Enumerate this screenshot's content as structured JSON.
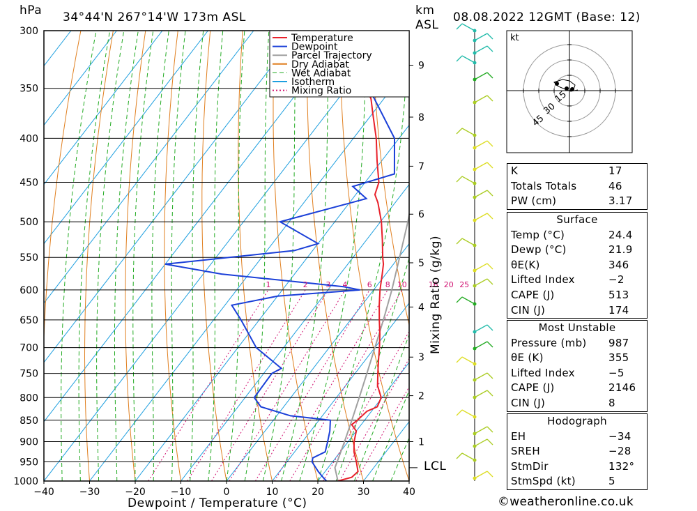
{
  "header": {
    "units_left": "hPa",
    "location": "34°44'N  267°14'W  173m  ASL",
    "units_km": "km",
    "units_asl": "ASL",
    "datetime": "08.08.2022  12GMT  (Base: 12)"
  },
  "chart_data": {
    "type": "skew-t log-p",
    "xlabel": "Dewpoint / Temperature (°C)",
    "ylabel_left": "hPa",
    "ylabel_right": "Mixing Ratio (g/kg)",
    "x_ticks": [
      -40,
      -30,
      -20,
      -10,
      0,
      10,
      20,
      30,
      40
    ],
    "x_tick_labels": [
      "−40",
      "−30",
      "−20",
      "−10",
      "0",
      "10",
      "20",
      "30",
      "40"
    ],
    "pressure_levels": [
      300,
      350,
      400,
      450,
      500,
      550,
      600,
      650,
      700,
      750,
      800,
      850,
      900,
      950,
      1000
    ],
    "km_ticks": [
      {
        "km": 1,
        "p": 900
      },
      {
        "km": 2,
        "p": 796
      },
      {
        "km": 3,
        "p": 718
      },
      {
        "km": 4,
        "p": 628
      },
      {
        "km": 5,
        "p": 558
      },
      {
        "km": 6,
        "p": 490
      },
      {
        "km": 7,
        "p": 431
      },
      {
        "km": 8,
        "p": 378
      },
      {
        "km": 9,
        "p": 329
      }
    ],
    "lcl": {
      "label": "LCL",
      "p": 965
    },
    "mixing_ratio_labels": [
      "1",
      "2",
      "3",
      "4",
      "6",
      "8",
      "10",
      "16",
      "20",
      "25"
    ],
    "legend": [
      {
        "label": "Temperature",
        "color": "#e8202a"
      },
      {
        "label": "Dewpoint",
        "color": "#1a3fd8"
      },
      {
        "label": "Parcel Trajectory",
        "color": "#a0a0a0"
      },
      {
        "label": "Dry Adiabat",
        "color": "#e07f1f"
      },
      {
        "label": "Wet Adiabat",
        "color": "#22aa22"
      },
      {
        "label": "Isotherm",
        "color": "#1e9fdf"
      },
      {
        "label": "Mixing Ratio",
        "color": "#d01070"
      }
    ],
    "series": [
      {
        "name": "Temperature",
        "points": [
          [
            1000,
            24.4
          ],
          [
            990,
            26.8
          ],
          [
            975,
            27.2
          ],
          [
            950,
            25.2
          ],
          [
            925,
            23.0
          ],
          [
            900,
            21.3
          ],
          [
            875,
            20.0
          ],
          [
            860,
            17.9
          ],
          [
            850,
            18.4
          ],
          [
            830,
            19.0
          ],
          [
            820,
            20.5
          ],
          [
            800,
            19.8
          ],
          [
            775,
            17.0
          ],
          [
            750,
            15.0
          ],
          [
            725,
            13.0
          ],
          [
            700,
            11.0
          ],
          [
            675,
            8.8
          ],
          [
            650,
            6.3
          ],
          [
            625,
            3.8
          ],
          [
            600,
            1.4
          ],
          [
            575,
            -0.8
          ],
          [
            560,
            -2.2
          ],
          [
            550,
            -3.5
          ],
          [
            525,
            -6.5
          ],
          [
            500,
            -9.8
          ],
          [
            475,
            -13.8
          ],
          [
            465,
            -15.8
          ],
          [
            450,
            -17.0
          ],
          [
            425,
            -21.0
          ],
          [
            400,
            -25.0
          ],
          [
            375,
            -29.8
          ],
          [
            360,
            -32.8
          ],
          [
            350,
            -35.6
          ],
          [
            325,
            -39.5
          ],
          [
            300,
            -43.5
          ]
        ]
      },
      {
        "name": "Dewpoint",
        "points": [
          [
            1000,
            21.9
          ],
          [
            990,
            20.5
          ],
          [
            975,
            18.5
          ],
          [
            950,
            15.5
          ],
          [
            940,
            15.0
          ],
          [
            925,
            16.7
          ],
          [
            900,
            15.5
          ],
          [
            875,
            14.2
          ],
          [
            850,
            12.5
          ],
          [
            840,
            3.0
          ],
          [
            820,
            -5.0
          ],
          [
            800,
            -8.0
          ],
          [
            750,
            -8.2
          ],
          [
            740,
            -7.0
          ],
          [
            700,
            -16.0
          ],
          [
            650,
            -24.0
          ],
          [
            625,
            -28.5
          ],
          [
            610,
            -20.0
          ],
          [
            600,
            -3.0
          ],
          [
            595,
            -7.0
          ],
          [
            590,
            -14.0
          ],
          [
            575,
            -36.0
          ],
          [
            560,
            -50.0
          ],
          [
            540,
            -24.0
          ],
          [
            530,
            -20.0
          ],
          [
            500,
            -32.0
          ],
          [
            470,
            -17.0
          ],
          [
            455,
            -22.0
          ],
          [
            440,
            -15.0
          ],
          [
            400,
            -21.0
          ],
          [
            350,
            -35.0
          ],
          [
            325,
            -50.0
          ],
          [
            310,
            -55.0
          ],
          [
            300,
            -56.0
          ]
        ]
      },
      {
        "name": "Parcel Trajectory",
        "points": [
          [
            1000,
            24.4
          ],
          [
            965,
            21.5
          ],
          [
            950,
            21.0
          ],
          [
            900,
            19.2
          ],
          [
            850,
            17.2
          ],
          [
            800,
            15.0
          ],
          [
            750,
            12.6
          ],
          [
            700,
            10.0
          ],
          [
            650,
            7.2
          ],
          [
            600,
            4.0
          ],
          [
            550,
            0.2
          ],
          [
            500,
            -4.0
          ],
          [
            450,
            -9.0
          ],
          [
            400,
            -15.5
          ],
          [
            350,
            -23.0
          ],
          [
            300,
            -33.0
          ]
        ]
      }
    ]
  },
  "hodograph": {
    "unit": "kt",
    "ring_labels": [
      "15",
      "30",
      "45"
    ]
  },
  "indices": {
    "top": [
      {
        "key": "K",
        "value": "17"
      },
      {
        "key": "Totals Totals",
        "value": "46"
      },
      {
        "key": "PW (cm)",
        "value": "3.17"
      }
    ],
    "surface": {
      "title": "Surface",
      "rows": [
        {
          "key": "Temp (°C)",
          "value": "24.4"
        },
        {
          "key": "Dewp (°C)",
          "value": "21.9"
        },
        {
          "key": "θE(K)",
          "value": "346"
        },
        {
          "key": "Lifted Index",
          "value": "−2"
        },
        {
          "key": "CAPE (J)",
          "value": "513"
        },
        {
          "key": "CIN (J)",
          "value": "174"
        }
      ]
    },
    "most_unstable": {
      "title": "Most Unstable",
      "rows": [
        {
          "key": "Pressure (mb)",
          "value": "987"
        },
        {
          "key": "θE (K)",
          "value": "355"
        },
        {
          "key": "Lifted Index",
          "value": "−5"
        },
        {
          "key": "CAPE (J)",
          "value": "2146"
        },
        {
          "key": "CIN (J)",
          "value": "8"
        }
      ]
    },
    "hodograph_panel": {
      "title": "Hodograph",
      "rows": [
        {
          "key": "EH",
          "value": "−34"
        },
        {
          "key": "SREH",
          "value": "−28"
        },
        {
          "key": "StmDir",
          "value": "132°"
        },
        {
          "key": "StmSpd (kt)",
          "value": "5"
        }
      ]
    }
  },
  "footer": "©weatheronline.co.uk"
}
